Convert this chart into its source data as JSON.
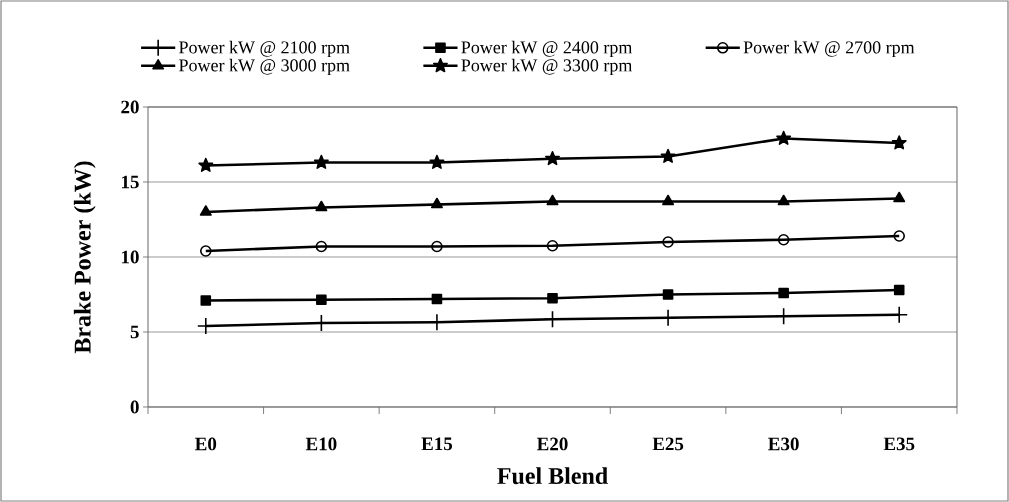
{
  "chart_data": {
    "type": "line",
    "xlabel": "Fuel Blend",
    "ylabel": "Brake Power (kW)",
    "categories": [
      "E0",
      "E10",
      "E15",
      "E20",
      "E25",
      "E30",
      "E35"
    ],
    "series": [
      {
        "name": "Power kW @ 2100 rpm",
        "color": "#000000",
        "marker": "cross",
        "values": [
          5.4,
          5.6,
          5.65,
          5.85,
          5.95,
          6.05,
          6.15
        ]
      },
      {
        "name": "Power kW @ 2400 rpm",
        "color": "#000000",
        "marker": "square",
        "values": [
          7.1,
          7.15,
          7.2,
          7.25,
          7.5,
          7.6,
          7.8
        ]
      },
      {
        "name": "Power kW @ 2700 rpm",
        "color": "#000000",
        "marker": "circle",
        "values": [
          10.4,
          10.7,
          10.7,
          10.75,
          11.0,
          11.15,
          11.4
        ]
      },
      {
        "name": "Power kW @ 3000 rpm",
        "color": "#000000",
        "marker": "triangle",
        "values": [
          13.0,
          13.3,
          13.5,
          13.7,
          13.7,
          13.7,
          13.9
        ]
      },
      {
        "name": "Power kW @ 3300 rpm",
        "color": "#000000",
        "marker": "star",
        "values": [
          16.1,
          16.3,
          16.3,
          16.55,
          16.7,
          17.9,
          17.6
        ]
      }
    ],
    "ylim": [
      0,
      20
    ],
    "yticks": [
      0,
      5,
      10,
      15,
      20
    ],
    "grid": "y",
    "legend": "top",
    "line_style": "solid"
  }
}
